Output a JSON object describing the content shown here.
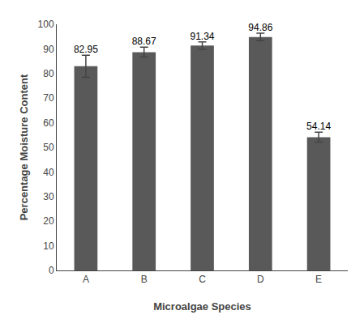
{
  "chart_data": {
    "type": "bar",
    "categories": [
      "A",
      "B",
      "C",
      "D",
      "E"
    ],
    "values": [
      82.95,
      88.67,
      91.34,
      94.86,
      54.14
    ],
    "errors": [
      4.5,
      2.0,
      1.5,
      1.5,
      2.0
    ],
    "color": "#595959",
    "xlabel": "Microalgae Species",
    "ylabel": "Percentage Moisture Content",
    "ylim": [
      0,
      100
    ],
    "yticks": [
      0,
      10,
      20,
      30,
      40,
      50,
      60,
      70,
      80,
      90,
      100
    ],
    "data_labels": true,
    "grid": false
  }
}
